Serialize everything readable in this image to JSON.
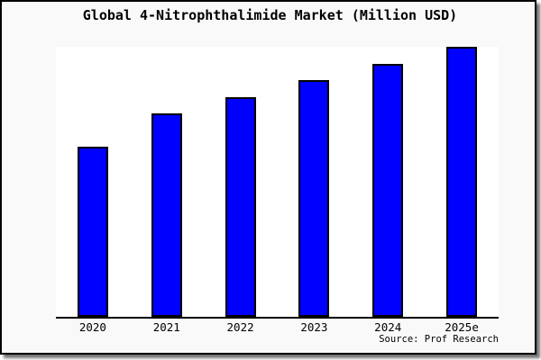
{
  "chart": {
    "source": "Source: Prof Research"
  },
  "chart_data": {
    "type": "bar",
    "title": "Global 4-Nitrophthalimide Market (Million USD)",
    "categories": [
      "2020",
      "2021",
      "2022",
      "2023",
      "2024",
      "2025e"
    ],
    "values": [
      62.9,
      75.2,
      81.5,
      87.7,
      93.7,
      100
    ],
    "value_note": "No y-axis labels shown in source image; values are bar heights as percent of the tallest (2025e) bar",
    "xlabel": "",
    "ylabel": "",
    "ylim": [
      0,
      100
    ],
    "grid": false,
    "legend": false,
    "bar_color": "#0000ff",
    "bar_border_color": "#000000",
    "annotations": [
      "Source: Prof Research"
    ]
  }
}
